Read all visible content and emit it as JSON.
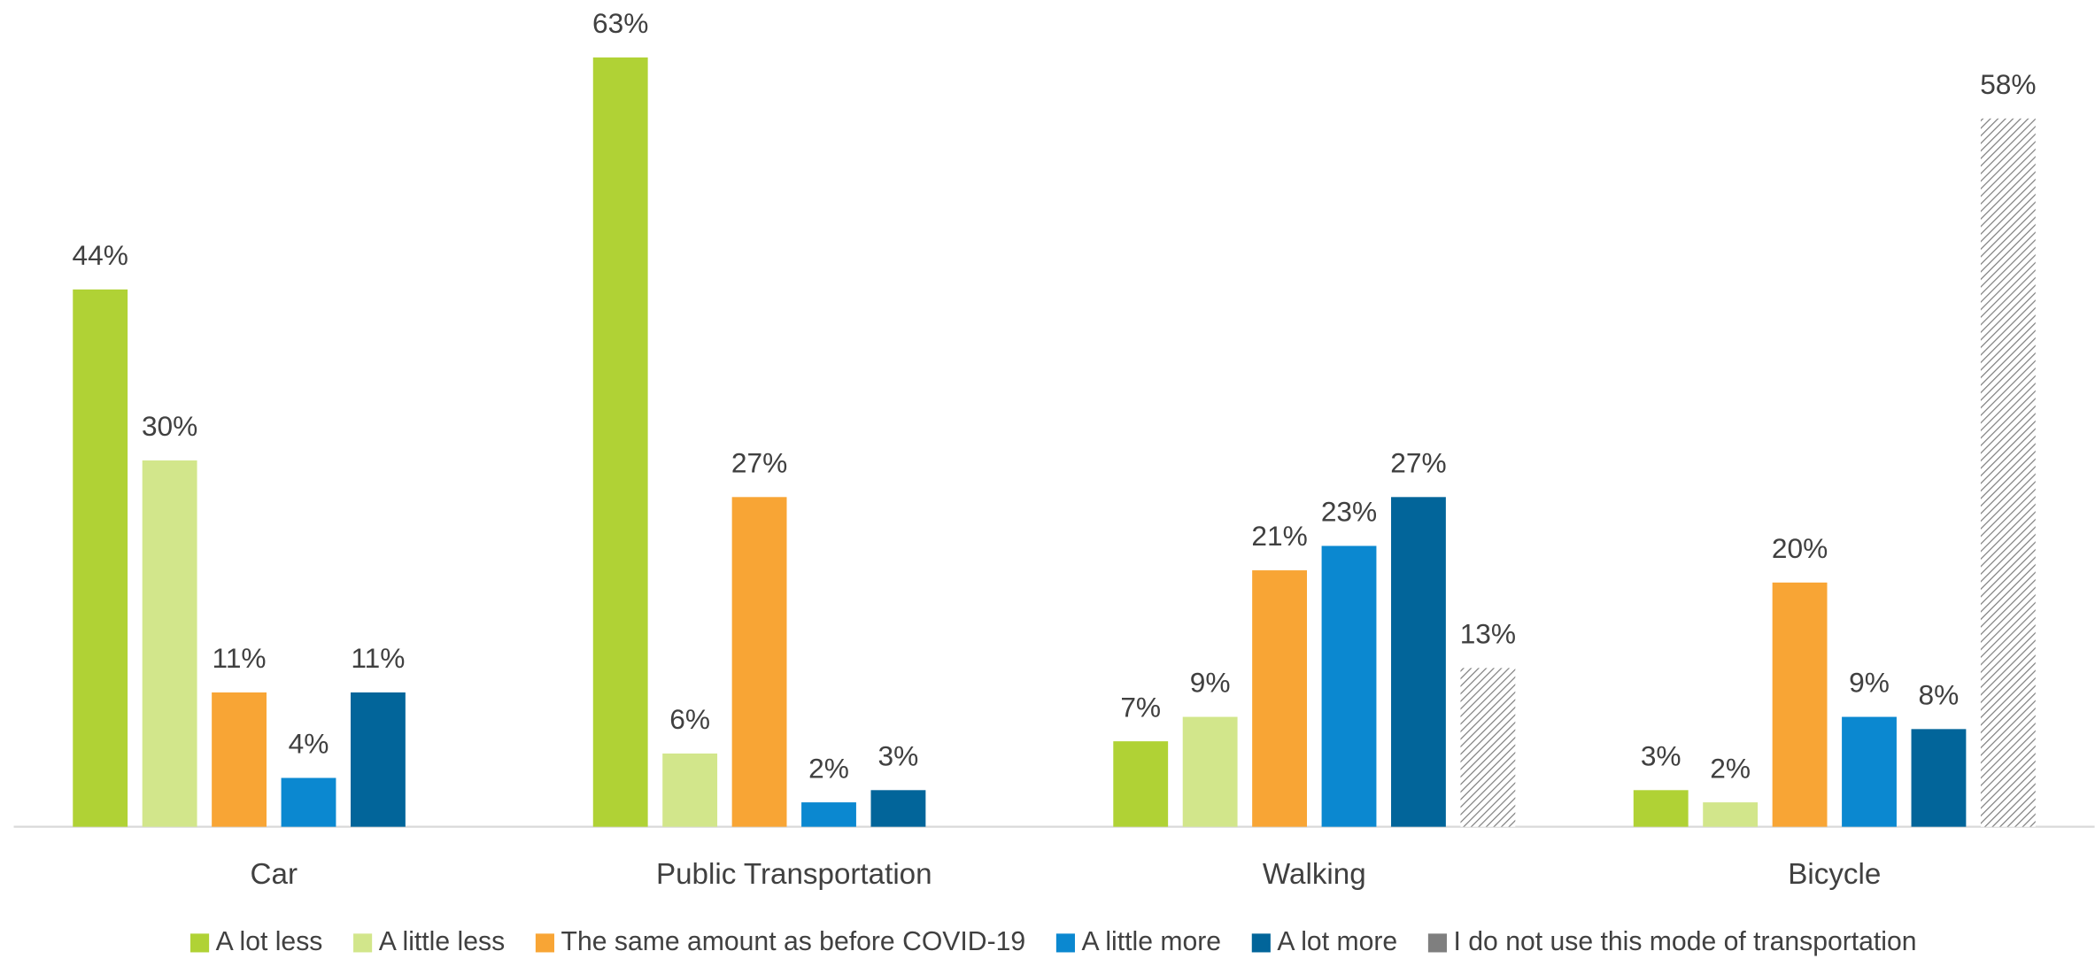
{
  "chart_data": {
    "type": "bar",
    "categories": [
      "Car",
      "Public Transportation",
      "Walking",
      "Bicycle"
    ],
    "series": [
      {
        "name": "A lot less",
        "color": "#b0d235",
        "values": [
          44,
          63,
          7,
          3
        ],
        "value_labels": [
          "44%",
          "63%",
          "7%",
          "3%"
        ]
      },
      {
        "name": "A little less",
        "color": "#d2e68b",
        "values": [
          30,
          6,
          9,
          2
        ],
        "value_labels": [
          "30%",
          "6%",
          "9%",
          "2%"
        ]
      },
      {
        "name": "The same amount as before COVID-19",
        "color": "#f8a535",
        "values": [
          11,
          27,
          21,
          20
        ],
        "value_labels": [
          "11%",
          "27%",
          "21%",
          "20%"
        ]
      },
      {
        "name": "A little more",
        "color": "#0b88d0",
        "values": [
          4,
          2,
          23,
          9
        ],
        "value_labels": [
          "4%",
          "2%",
          "23%",
          "9%"
        ]
      },
      {
        "name": "A lot more",
        "color": "#02659a",
        "values": [
          11,
          3,
          27,
          8
        ],
        "value_labels": [
          "11%",
          "3%",
          "27%",
          "8%"
        ]
      },
      {
        "name": "I do not use this mode of transportation",
        "color": "#7f7f7f",
        "fill": "hatched",
        "values": [
          null,
          null,
          13,
          58
        ],
        "value_labels": [
          null,
          null,
          "13%",
          "58%"
        ]
      }
    ],
    "ylim": [
      0,
      63
    ],
    "legend": "bottom"
  }
}
